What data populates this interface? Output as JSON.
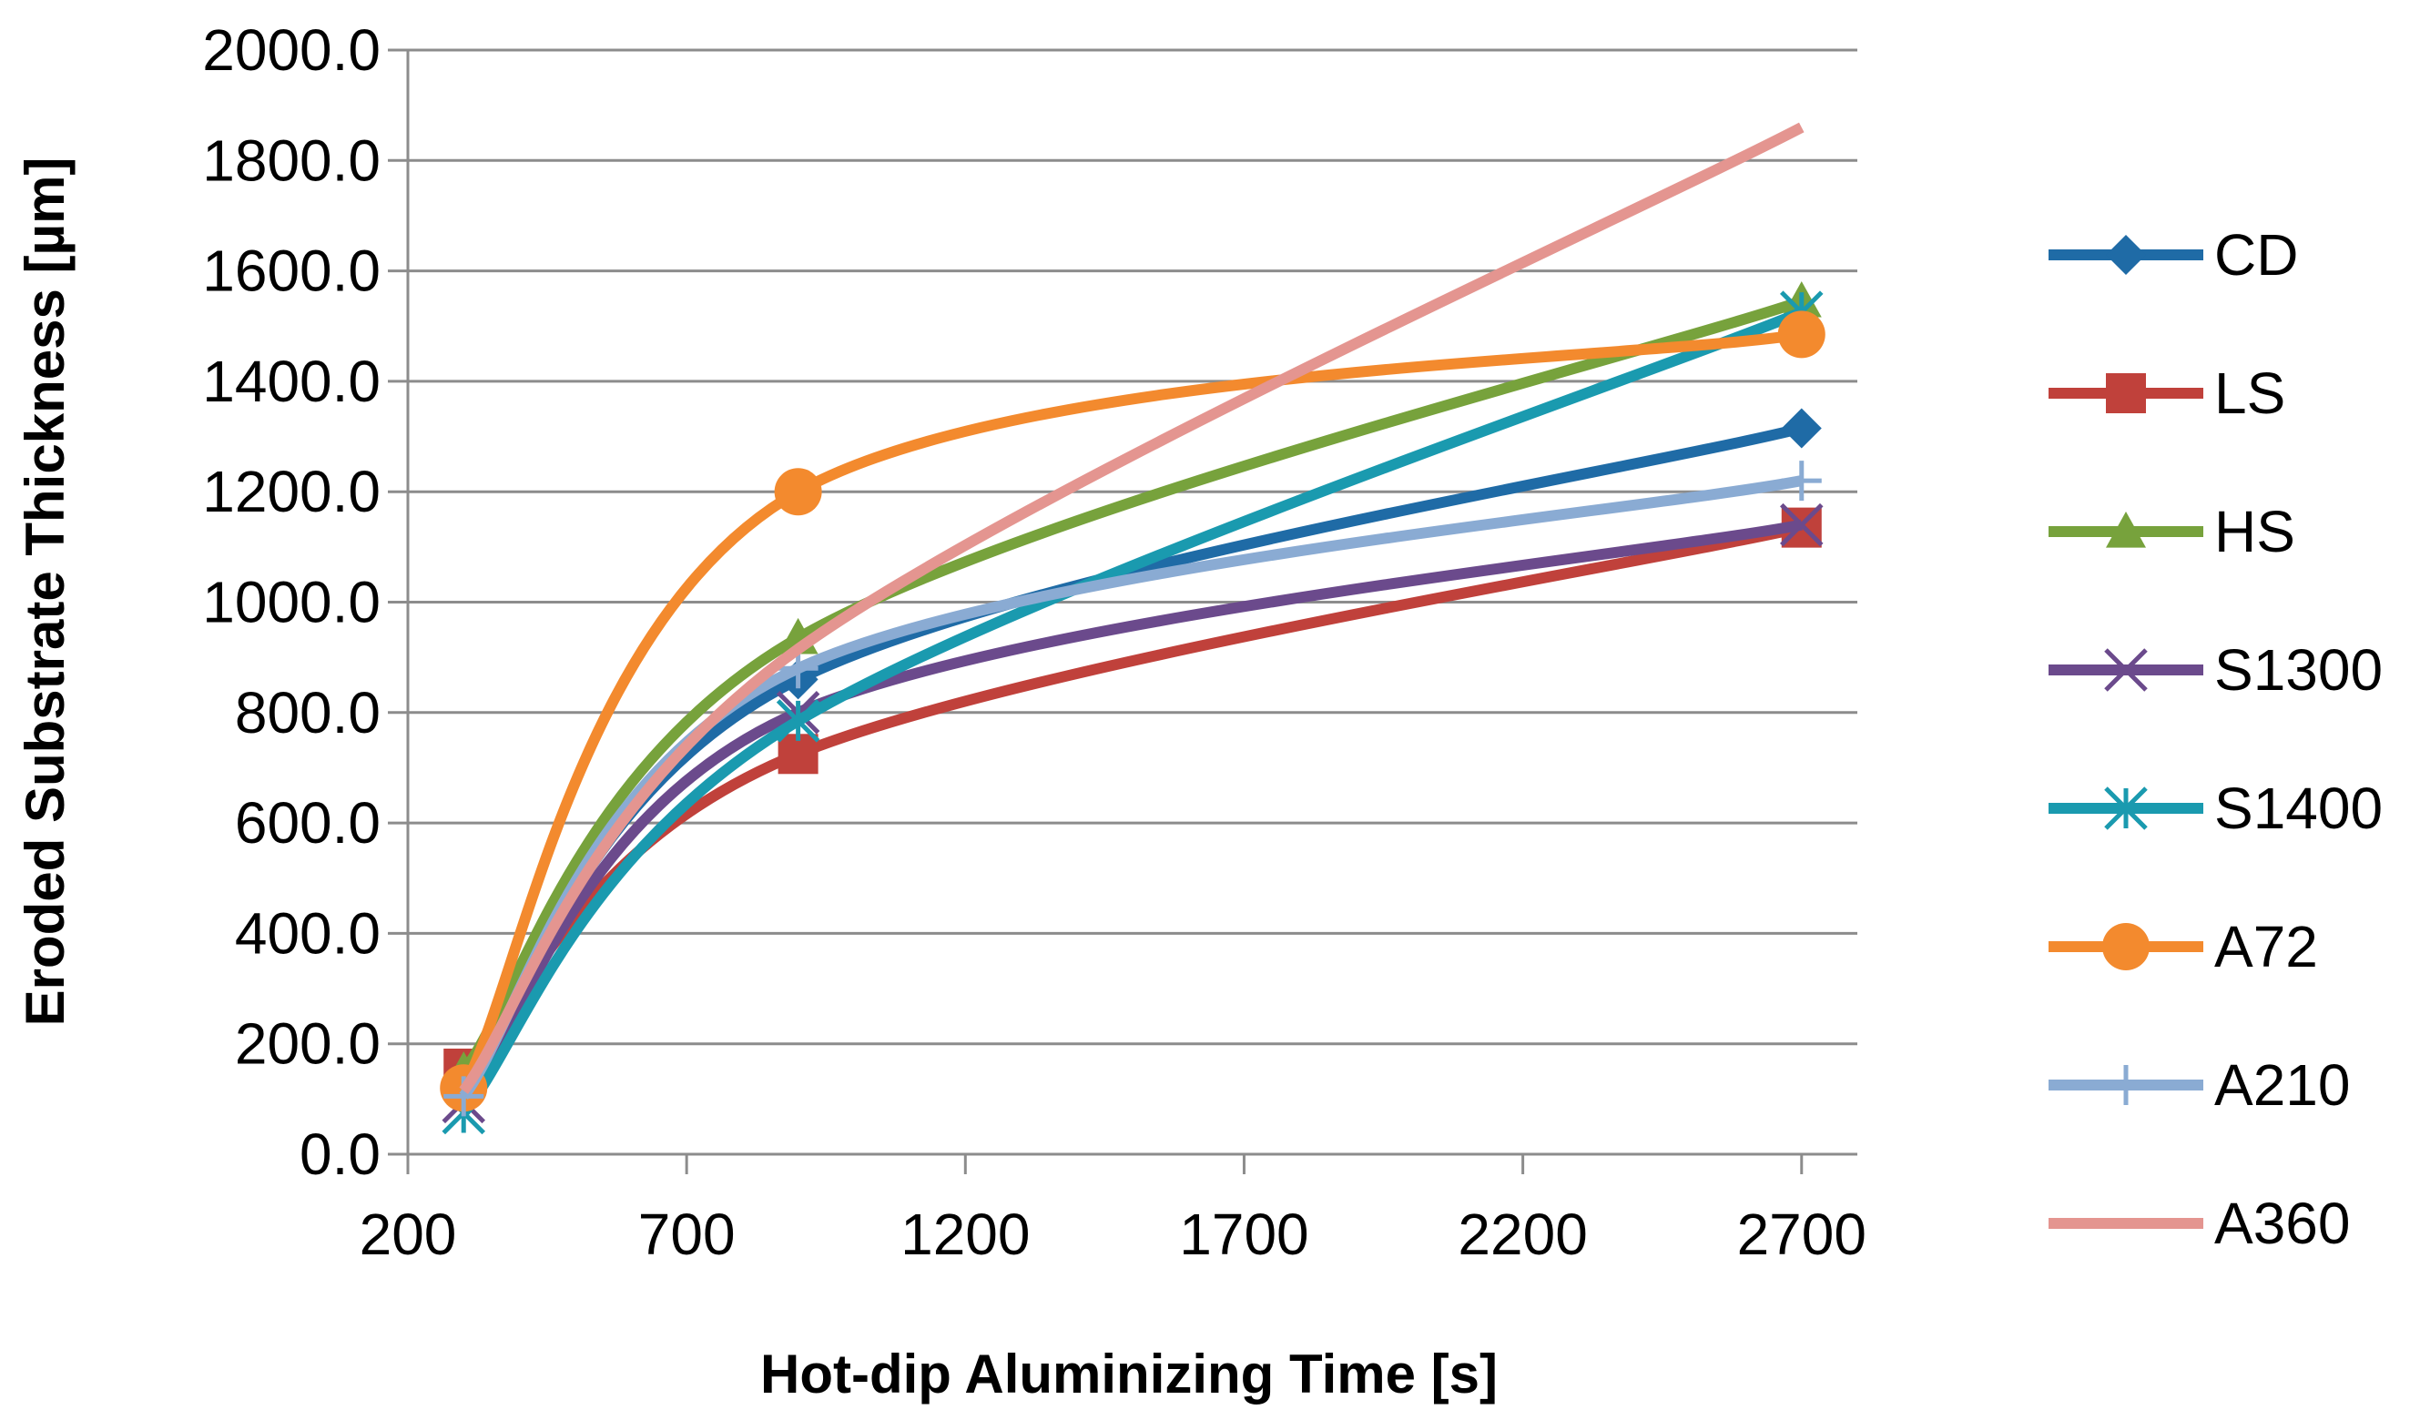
{
  "chart_data": {
    "type": "line",
    "title": "",
    "xlabel": "Hot-dip Aluminizing Time [s]",
    "ylabel": "Eroded Substrate Thickness [µm]",
    "xlim": [
      200,
      2800
    ],
    "ylim": [
      0,
      2000
    ],
    "xticks": [
      200,
      700,
      1200,
      1700,
      2200,
      2700
    ],
    "xtick_labels": [
      "200",
      "700",
      "1200",
      "1700",
      "2200",
      "2700"
    ],
    "yticks": [
      0,
      200,
      400,
      600,
      800,
      1000,
      1200,
      1400,
      1600,
      1800,
      2000
    ],
    "ytick_labels": [
      "0.0",
      "200.0",
      "400.0",
      "600.0",
      "800.0",
      "1000.0",
      "1200.0",
      "1400.0",
      "1600.0",
      "1800.0",
      "2000.0"
    ],
    "grid": "horizontal",
    "legend_position": "right",
    "x": [
      300,
      900,
      2700
    ],
    "series": [
      {
        "name": "CD",
        "values": [
          110,
          860,
          1315
        ],
        "color": "#1f6ba6",
        "marker": "diamond"
      },
      {
        "name": "LS",
        "values": [
          155,
          725,
          1135
        ],
        "color": "#c0413b",
        "marker": "square"
      },
      {
        "name": "HS",
        "values": [
          150,
          935,
          1545
        ],
        "color": "#77a23c",
        "marker": "triangle"
      },
      {
        "name": "S1300",
        "values": [
          95,
          800,
          1140
        ],
        "color": "#6b4a8c",
        "marker": "x"
      },
      {
        "name": "S1400",
        "values": [
          75,
          785,
          1525
        ],
        "color": "#1a9aaf",
        "marker": "asterisk"
      },
      {
        "name": "A72",
        "values": [
          120,
          1200,
          1485
        ],
        "color": "#f38a2e",
        "marker": "circle"
      },
      {
        "name": "A210",
        "values": [
          105,
          880,
          1220
        ],
        "color": "#8aabd3",
        "marker": "plus"
      },
      {
        "name": "A360",
        "values": [
          115,
          915,
          1860
        ],
        "color": "#e49590",
        "marker": "none"
      }
    ]
  }
}
